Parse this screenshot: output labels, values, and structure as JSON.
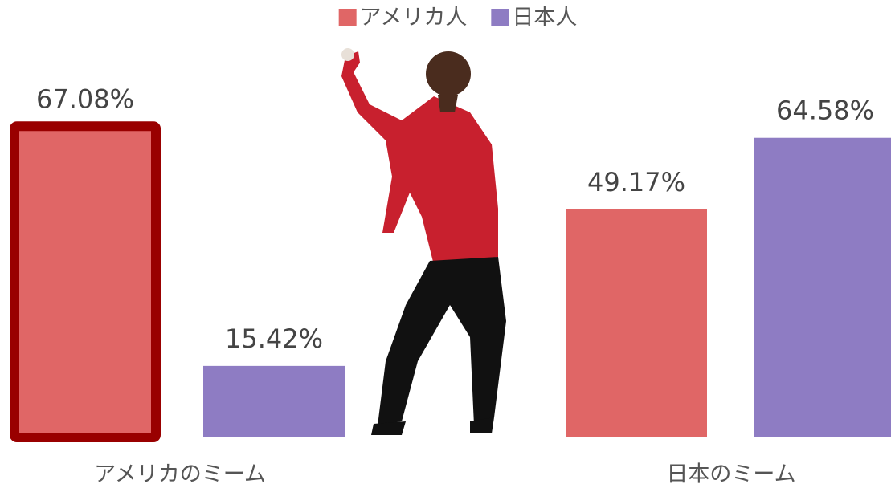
{
  "chart_data": {
    "type": "bar",
    "categories": [
      "アメリカのミーム",
      "日本のミーム"
    ],
    "series": [
      {
        "name": "アメリカ人",
        "color": "#e06666",
        "values": [
          67.08,
          49.17
        ],
        "value_labels": [
          "67.08%",
          "49.17%"
        ]
      },
      {
        "name": "日本人",
        "color": "#8e7cc3",
        "values": [
          15.42,
          64.58
        ],
        "value_labels": [
          "15.42%",
          "64.58%"
        ]
      }
    ],
    "highlight": {
      "series": 0,
      "category": 0,
      "color": "#990000"
    },
    "legend": "top"
  }
}
